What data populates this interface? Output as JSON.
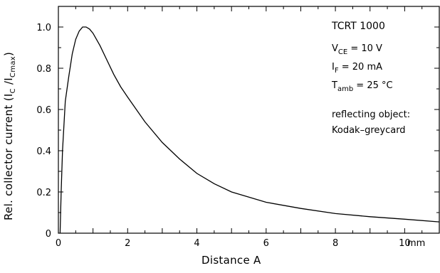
{
  "chart_data": {
    "type": "line",
    "xlabel": "Distance A",
    "ylabel": "Rel. collector current  (I",
    "ylabel_sub1": "C",
    "ylabel_mid": " /I",
    "ylabel_sub2": "Cmax",
    "ylabel_end": ")",
    "x_unit": "mm",
    "xlim": [
      0,
      11
    ],
    "ylim": [
      0,
      1.1
    ],
    "x_ticks": [
      "0",
      "2",
      "4",
      "6",
      "8",
      "10"
    ],
    "y_ticks": [
      "0",
      "0.2",
      "0.4",
      "0.6",
      "0.8",
      "1.0"
    ],
    "grid": false,
    "series": [
      {
        "x": [
          0.05,
          0.08,
          0.12,
          0.2,
          0.3,
          0.4,
          0.5,
          0.6,
          0.7,
          0.8,
          0.9,
          1.0,
          1.2,
          1.4,
          1.6,
          1.8,
          2.0,
          2.5,
          3.0,
          3.5,
          4.0,
          4.5,
          5.0,
          6.0,
          7.0,
          8.0,
          9.0,
          10.0,
          11.0
        ],
        "y": [
          0.0,
          0.2,
          0.4,
          0.64,
          0.76,
          0.87,
          0.94,
          0.98,
          1.0,
          1.0,
          0.99,
          0.97,
          0.91,
          0.84,
          0.77,
          0.71,
          0.66,
          0.54,
          0.44,
          0.36,
          0.29,
          0.24,
          0.2,
          0.15,
          0.12,
          0.095,
          0.08,
          0.068,
          0.055
        ]
      }
    ]
  },
  "annotations": {
    "device": "TCRT 1000",
    "vce_main": "V",
    "vce_sub": "CE",
    "vce_val": " = 10 V",
    "if_main": "I",
    "if_sub": "F",
    "if_val": " = 20 mA",
    "tamb_main": "T",
    "tamb_sub": "amb",
    "tamb_val": " = 25 °C",
    "reflect_line1": "reflecting object:",
    "reflect_line2": "Kodak–greycard"
  }
}
